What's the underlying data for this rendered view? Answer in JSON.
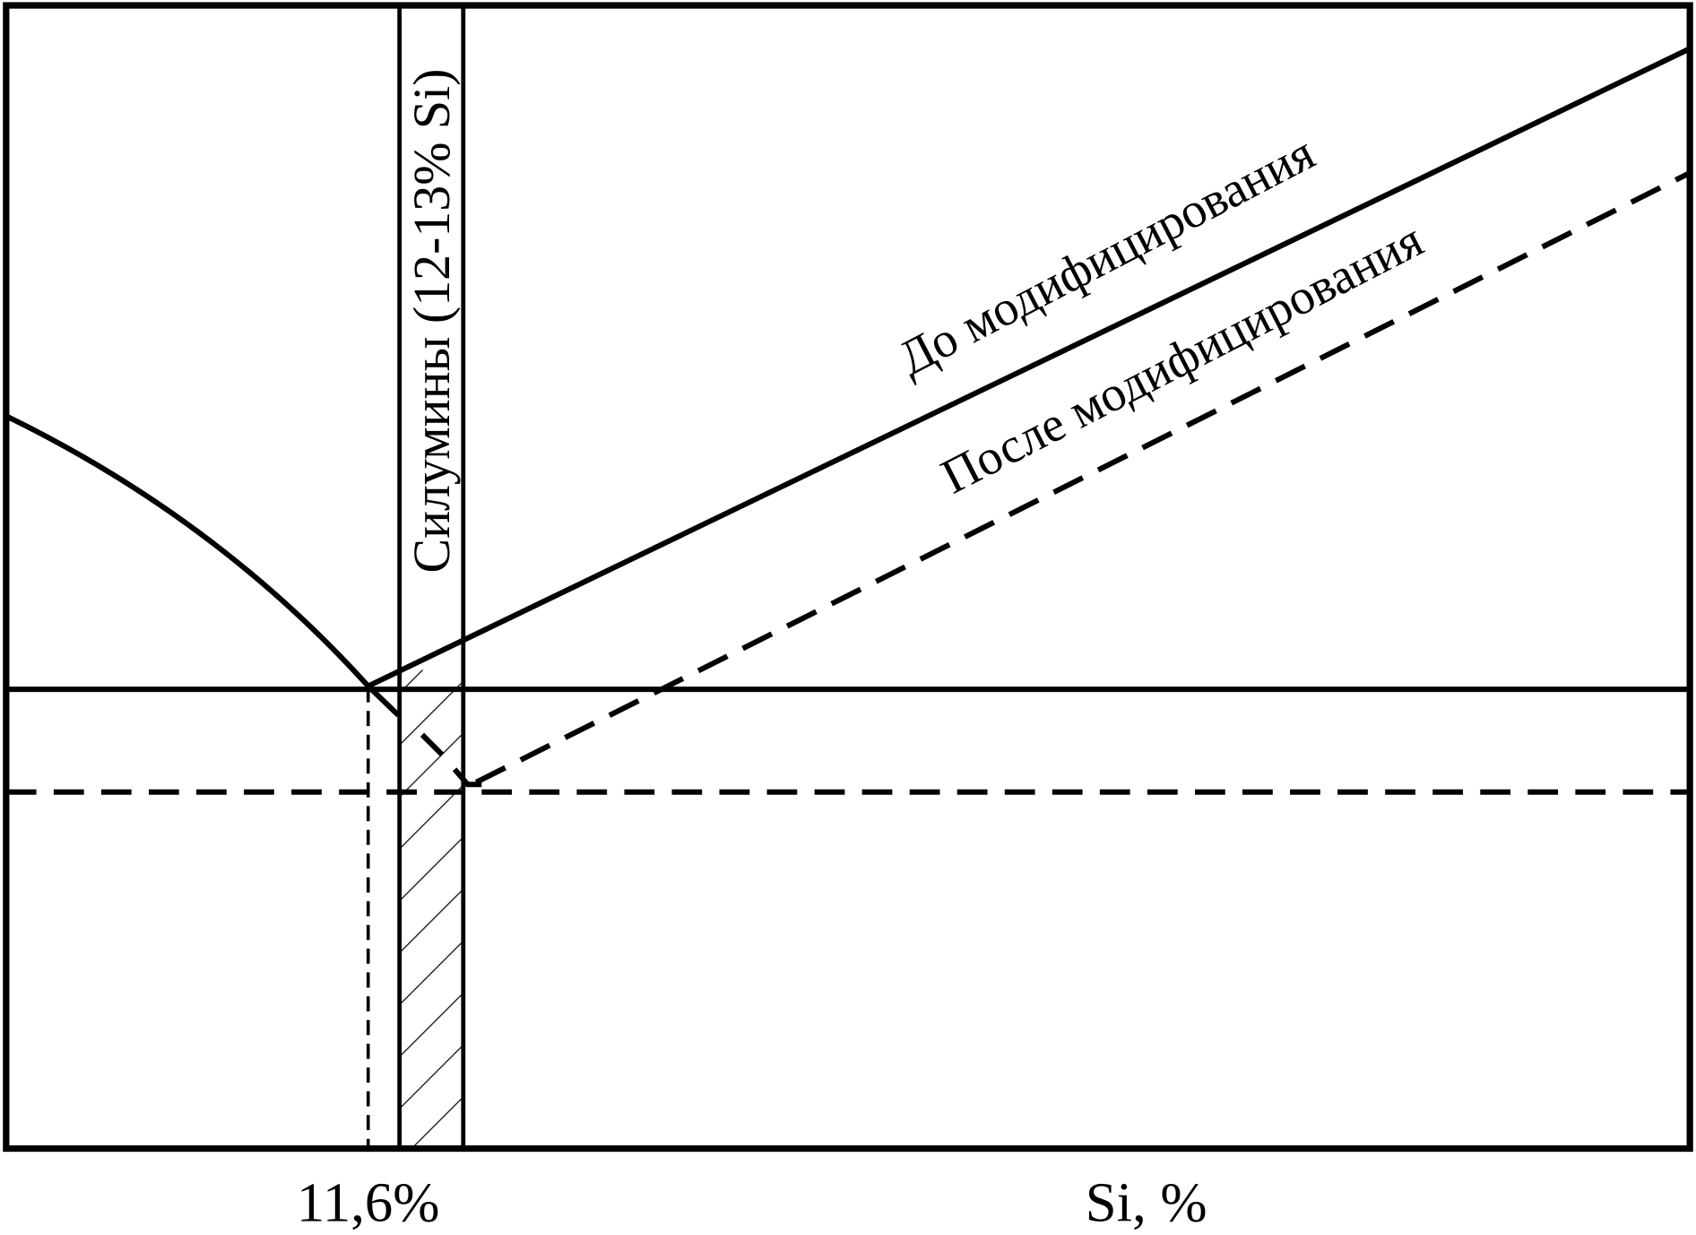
{
  "x_axis_label": "Si, %",
  "eutectic_label": "11,6%",
  "curves": {
    "before": "До модифицирования",
    "after": "После модифицирования"
  },
  "band_label": "Силумины (12-13% Si)"
}
